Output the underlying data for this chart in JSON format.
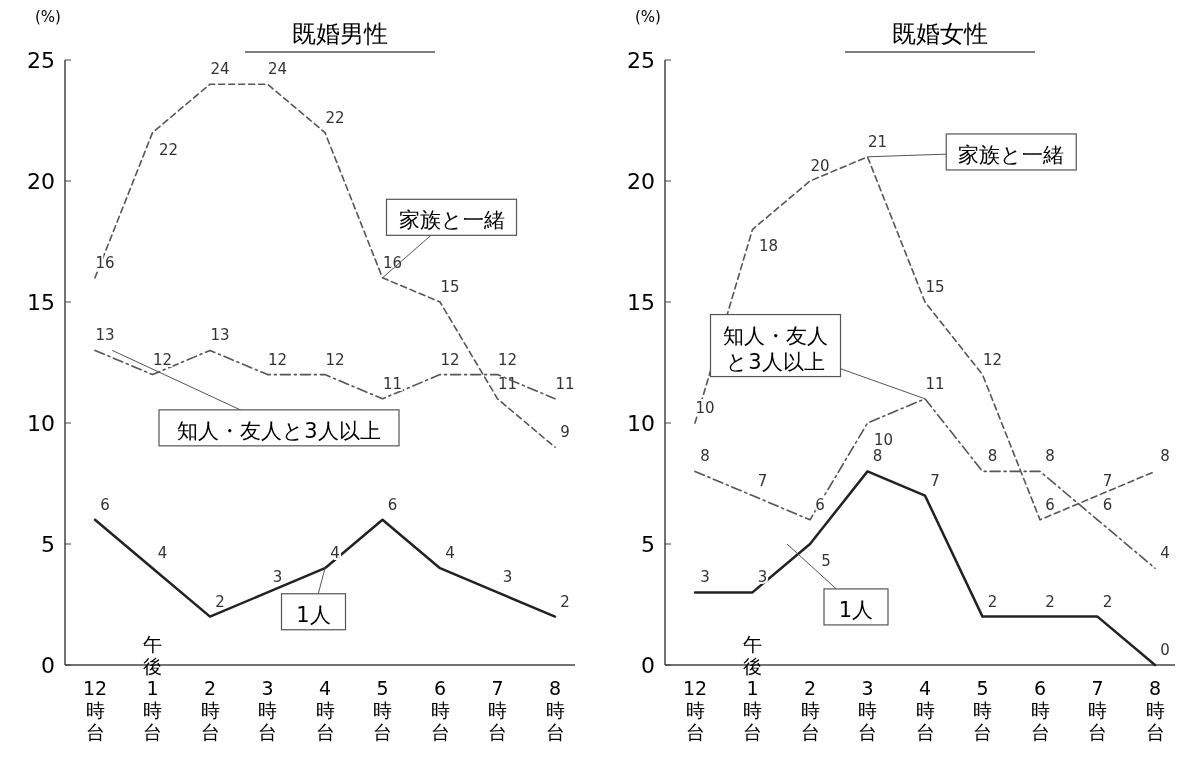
{
  "chart_data": [
    {
      "type": "line",
      "title": "既婚男性",
      "ylabel": "(%)",
      "categories": [
        "12時台",
        "午後1時台",
        "2時台",
        "3時台",
        "4時台",
        "5時台",
        "6時台",
        "7時台",
        "8時台"
      ],
      "ylim": [
        0,
        25
      ],
      "yticks": [
        0,
        5,
        10,
        15,
        20,
        25
      ],
      "data_labels": true,
      "legend": false,
      "grid": false,
      "marker": "none",
      "series": [
        {
          "name": "家族と一緒",
          "color": "#555555",
          "line_style": "dashed",
          "values": [
            16,
            22,
            24,
            24,
            22,
            16,
            15,
            11,
            9
          ]
        },
        {
          "name": "知人・友人と3人以上",
          "color": "#555555",
          "line_style": "dashdot",
          "values": [
            13,
            12,
            13,
            12,
            12,
            11,
            12,
            12,
            11
          ]
        },
        {
          "name": "1人",
          "color": "#222222",
          "line_style": "solid",
          "values": [
            6,
            4,
            2,
            3,
            4,
            6,
            4,
            3,
            2
          ]
        }
      ]
    },
    {
      "type": "line",
      "title": "既婚女性",
      "ylabel": "(%)",
      "categories": [
        "12時台",
        "午後1時台",
        "2時台",
        "3時台",
        "4時台",
        "5時台",
        "6時台",
        "7時台",
        "8時台"
      ],
      "ylim": [
        0,
        25
      ],
      "yticks": [
        0,
        5,
        10,
        15,
        20,
        25
      ],
      "data_labels": true,
      "legend": false,
      "grid": false,
      "marker": "none",
      "series": [
        {
          "name": "家族と一緒",
          "color": "#555555",
          "line_style": "dashed",
          "values": [
            10,
            18,
            20,
            21,
            15,
            12,
            6,
            7,
            8
          ]
        },
        {
          "name": "知人・友人と3人以上",
          "color": "#555555",
          "line_style": "dashdot",
          "values": [
            8,
            7,
            6,
            10,
            11,
            8,
            8,
            6,
            4
          ]
        },
        {
          "name": "1人",
          "color": "#222222",
          "line_style": "solid",
          "values": [
            3,
            3,
            5,
            8,
            7,
            2,
            2,
            2,
            0
          ]
        }
      ]
    }
  ]
}
